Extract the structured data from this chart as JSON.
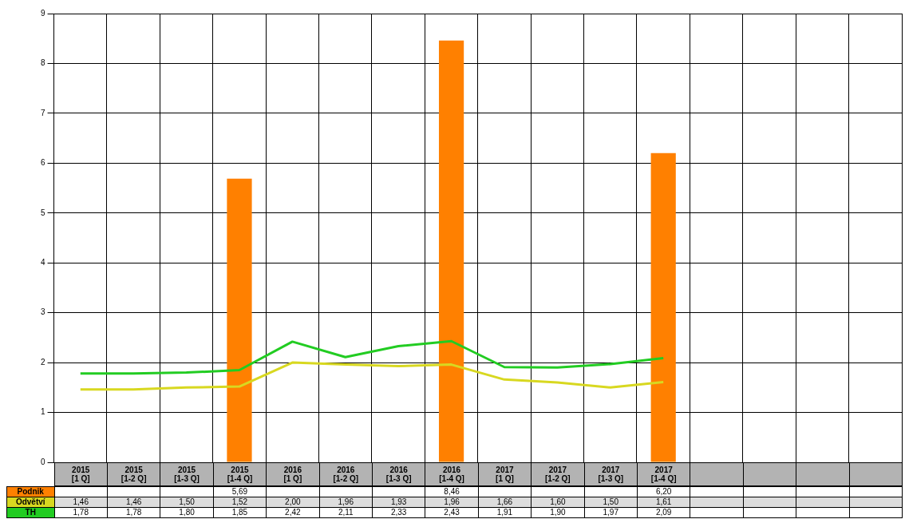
{
  "chart_data": {
    "type": "bar",
    "categories": [
      "2015 [1 Q]",
      "2015 [1-2 Q]",
      "2015 [1-3 Q]",
      "2015 [1-4 Q]",
      "2016 [1 Q]",
      "2016 [1-2 Q]",
      "2016 [1-3 Q]",
      "2016 [1-4 Q]",
      "2017 [1 Q]",
      "2017 [1-2 Q]",
      "2017 [1-3 Q]",
      "2017 [1-4 Q]",
      null,
      null,
      null,
      null
    ],
    "series": [
      {
        "name": "Podnik",
        "color": "#ff8000",
        "values": [
          null,
          null,
          null,
          5.69,
          null,
          null,
          null,
          8.46,
          null,
          null,
          null,
          6.2,
          null,
          null,
          null,
          null
        ],
        "value_labels": [
          null,
          null,
          null,
          "5,69",
          null,
          null,
          null,
          "8,46",
          null,
          null,
          null,
          "6,20",
          null,
          null,
          null,
          null
        ]
      },
      {
        "name": "Odvětví",
        "type": "line",
        "color": "#d8d820",
        "values": [
          1.46,
          1.46,
          1.5,
          1.52,
          2.0,
          1.96,
          1.93,
          1.96,
          1.66,
          1.6,
          1.5,
          1.61,
          null,
          null,
          null,
          null
        ],
        "value_labels": [
          "1,46",
          "1,46",
          "1,50",
          "1,52",
          "2,00",
          "1,96",
          "1,93",
          "1,96",
          "1,66",
          "1,60",
          "1,50",
          "1,61",
          null,
          null,
          null,
          null
        ]
      },
      {
        "name": "TH",
        "type": "line",
        "color": "#22cc22",
        "values": [
          1.78,
          1.78,
          1.8,
          1.85,
          2.42,
          2.11,
          2.33,
          2.43,
          1.91,
          1.9,
          1.97,
          2.09,
          null,
          null,
          null,
          null
        ],
        "value_labels": [
          "1,78",
          "1,78",
          "1,80",
          "1,85",
          "2,42",
          "2,11",
          "2,33",
          "2,43",
          "1,91",
          "1,90",
          "1,97",
          "2,09",
          null,
          null,
          null,
          null
        ]
      }
    ],
    "ylim": [
      0,
      9
    ],
    "yticks": [
      0,
      1,
      2,
      3,
      4,
      5,
      6,
      7,
      8,
      9
    ],
    "grid": true
  }
}
